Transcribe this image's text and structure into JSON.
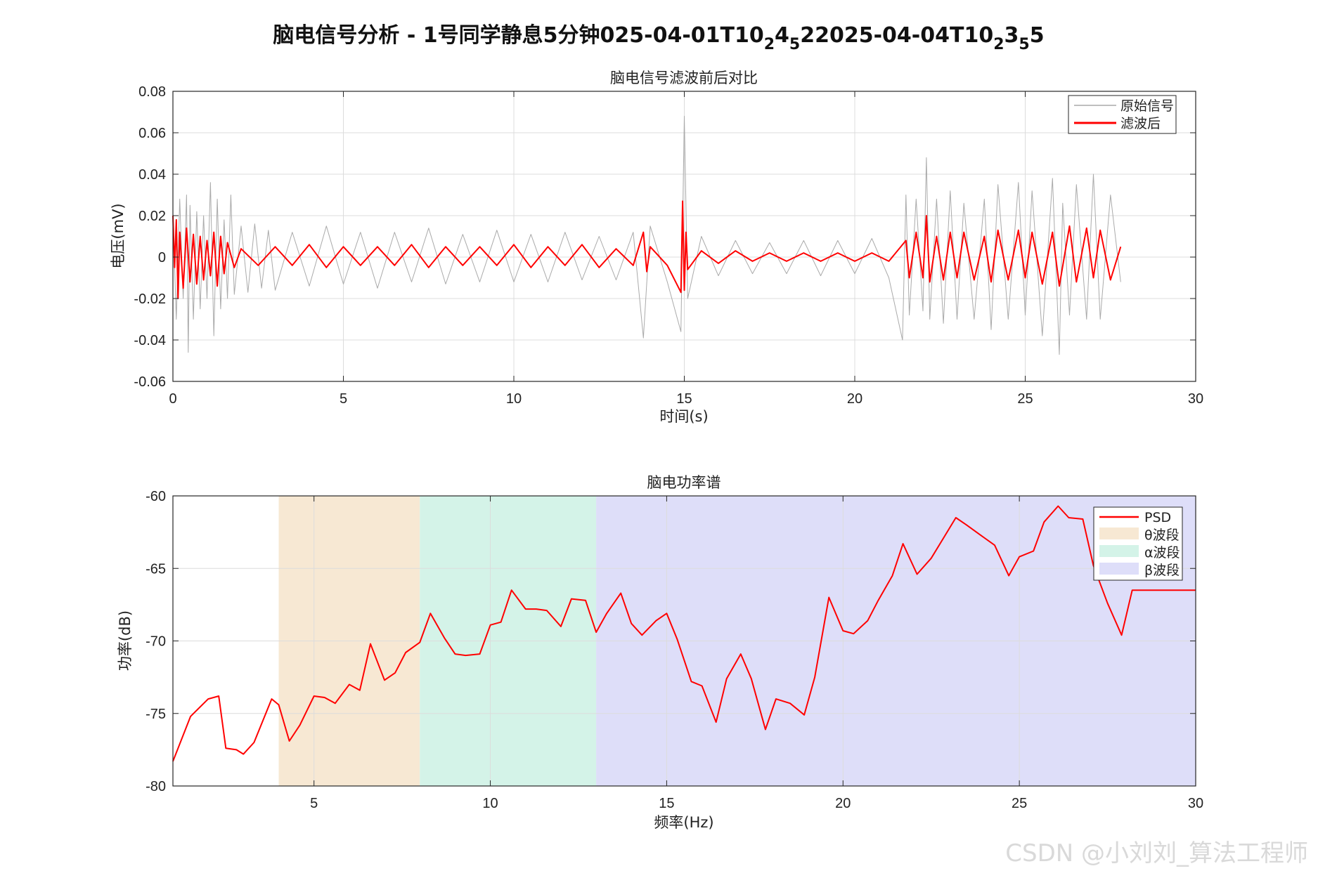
{
  "figure": {
    "suptitle": "脑电信号分析 - 1号同学静息5分钟025-04-01T10",
    "suptitle_parts": [
      {
        "t": "脑电信号分析 - 1号同学静息5分钟025-04-01T10",
        "sub": false
      },
      {
        "t": "2",
        "sub": true
      },
      {
        "t": "4",
        "sub": false
      },
      {
        "t": "5",
        "sub": true
      },
      {
        "t": "22025-04-04T10",
        "sub": false
      },
      {
        "t": "2",
        "sub": true
      },
      {
        "t": "3",
        "sub": false
      },
      {
        "t": "5",
        "sub": true
      },
      {
        "t": "5",
        "sub": false
      }
    ]
  },
  "watermark": "CSDN @小刘刘_算法工程师",
  "chart_data": [
    {
      "type": "line",
      "title": "脑电信号滤波前后对比",
      "xlabel": "时间(s)",
      "ylabel": "电压(mV)",
      "xlim": [
        0,
        30
      ],
      "ylim": [
        -0.06,
        0.08
      ],
      "xticks": [
        0,
        5,
        10,
        15,
        20,
        25,
        30
      ],
      "xtick_labels": [
        "0",
        "5",
        "10",
        "15",
        "20",
        "25",
        "30"
      ],
      "yticks": [
        -0.06,
        -0.04,
        -0.02,
        0,
        0.02,
        0.04,
        0.06,
        0.08
      ],
      "ytick_labels": [
        "-0.06",
        "-0.04",
        "-0.02",
        "0",
        "0.02",
        "0.04",
        "0.06",
        "0.08"
      ],
      "grid": true,
      "legend_position": "top-right",
      "series": [
        {
          "name": "原始信号",
          "color": "#aaaaaa",
          "x": [
            0,
            0.1,
            0.2,
            0.3,
            0.4,
            0.45,
            0.5,
            0.6,
            0.7,
            0.8,
            0.9,
            1.0,
            1.1,
            1.2,
            1.3,
            1.4,
            1.5,
            1.6,
            1.7,
            1.8,
            2.0,
            2.2,
            2.4,
            2.6,
            2.8,
            3.0,
            3.5,
            4.0,
            4.5,
            5.0,
            5.5,
            6.0,
            6.5,
            7.0,
            7.5,
            8.0,
            8.5,
            9.0,
            9.5,
            10.0,
            10.5,
            11.0,
            11.5,
            12.0,
            12.5,
            13.0,
            13.5,
            13.8,
            14.0,
            14.5,
            14.9,
            15.0,
            15.1,
            15.5,
            16.0,
            16.5,
            17.0,
            17.5,
            18.0,
            18.5,
            19.0,
            19.5,
            20.0,
            20.5,
            21.0,
            21.4,
            21.5,
            21.6,
            21.8,
            22.0,
            22.1,
            22.2,
            22.4,
            22.6,
            22.8,
            23.0,
            23.2,
            23.5,
            23.8,
            24.0,
            24.2,
            24.5,
            24.8,
            25.0,
            25.2,
            25.5,
            25.8,
            26.0,
            26.1,
            26.3,
            26.5,
            26.8,
            27.0,
            27.2,
            27.5,
            27.8
          ],
          "y": [
            0.02,
            -0.03,
            0.028,
            -0.02,
            0.03,
            -0.046,
            0.025,
            -0.03,
            0.022,
            -0.025,
            0.02,
            -0.02,
            0.036,
            -0.038,
            0.028,
            -0.025,
            0.018,
            -0.02,
            0.03,
            -0.018,
            0.015,
            -0.017,
            0.016,
            -0.015,
            0.013,
            -0.016,
            0.012,
            -0.014,
            0.015,
            -0.013,
            0.012,
            -0.015,
            0.012,
            -0.012,
            0.014,
            -0.013,
            0.011,
            -0.012,
            0.013,
            -0.012,
            0.011,
            -0.012,
            0.012,
            -0.011,
            0.01,
            -0.011,
            0.012,
            -0.039,
            0.015,
            -0.012,
            -0.036,
            0.068,
            -0.02,
            0.01,
            -0.009,
            0.008,
            -0.008,
            0.007,
            -0.008,
            0.008,
            -0.009,
            0.008,
            -0.008,
            0.009,
            -0.01,
            -0.04,
            0.03,
            -0.028,
            0.028,
            -0.026,
            0.048,
            -0.03,
            0.028,
            -0.032,
            0.032,
            -0.03,
            0.026,
            -0.03,
            0.028,
            -0.035,
            0.035,
            -0.03,
            0.036,
            -0.028,
            0.032,
            -0.038,
            0.038,
            -0.047,
            0.026,
            -0.028,
            0.035,
            -0.03,
            0.04,
            -0.03,
            0.03,
            -0.012
          ]
        },
        {
          "name": "滤波后",
          "color": "#ff0000",
          "x": [
            0,
            0.05,
            0.1,
            0.15,
            0.2,
            0.3,
            0.4,
            0.5,
            0.6,
            0.7,
            0.8,
            0.9,
            1.0,
            1.1,
            1.2,
            1.3,
            1.4,
            1.5,
            1.6,
            1.8,
            2.0,
            2.5,
            3.0,
            3.5,
            4.0,
            4.5,
            5.0,
            5.5,
            6.0,
            6.5,
            7.0,
            7.5,
            8.0,
            8.5,
            9.0,
            9.5,
            10.0,
            10.5,
            11.0,
            11.5,
            12.0,
            12.5,
            13.0,
            13.5,
            13.8,
            13.9,
            14.0,
            14.5,
            14.9,
            14.95,
            15.0,
            15.05,
            15.1,
            15.5,
            16.0,
            16.5,
            17.0,
            17.5,
            18.0,
            18.5,
            19.0,
            19.5,
            20.0,
            20.5,
            21.0,
            21.5,
            21.6,
            21.8,
            22.0,
            22.1,
            22.2,
            22.4,
            22.6,
            22.8,
            23.0,
            23.2,
            23.5,
            23.8,
            24.0,
            24.2,
            24.5,
            24.8,
            25.0,
            25.2,
            25.5,
            25.8,
            26.0,
            26.3,
            26.5,
            26.8,
            27.0,
            27.2,
            27.5,
            27.8
          ],
          "y": [
            0.02,
            -0.005,
            0.018,
            -0.02,
            0.012,
            -0.015,
            0.014,
            -0.012,
            0.011,
            -0.013,
            0.01,
            -0.011,
            0.008,
            -0.009,
            0.012,
            -0.014,
            0.01,
            -0.008,
            0.007,
            -0.005,
            0.004,
            -0.004,
            0.005,
            -0.004,
            0.006,
            -0.005,
            0.005,
            -0.004,
            0.005,
            -0.004,
            0.006,
            -0.005,
            0.005,
            -0.004,
            0.005,
            -0.004,
            0.006,
            -0.005,
            0.005,
            -0.004,
            0.006,
            -0.005,
            0.004,
            -0.004,
            0.012,
            -0.007,
            0.005,
            -0.004,
            -0.017,
            0.027,
            -0.016,
            0.012,
            -0.006,
            0.003,
            -0.003,
            0.003,
            -0.002,
            0.002,
            -0.002,
            0.002,
            -0.002,
            0.002,
            -0.002,
            0.002,
            -0.002,
            0.008,
            -0.01,
            0.012,
            -0.01,
            0.02,
            -0.012,
            0.01,
            -0.011,
            0.012,
            -0.01,
            0.012,
            -0.011,
            0.01,
            -0.012,
            0.013,
            -0.011,
            0.013,
            -0.01,
            0.012,
            -0.013,
            0.012,
            -0.014,
            0.015,
            -0.012,
            0.014,
            -0.01,
            0.013,
            -0.011,
            0.005
          ]
        }
      ]
    },
    {
      "type": "line",
      "title": "脑电功率谱",
      "xlabel": "频率(Hz)",
      "ylabel": "功率(dB)",
      "xlim": [
        1,
        30
      ],
      "ylim": [
        -80,
        -60
      ],
      "xticks": [
        5,
        10,
        15,
        20,
        25,
        30
      ],
      "xtick_labels": [
        "5",
        "10",
        "15",
        "20",
        "25",
        "30"
      ],
      "yticks": [
        -80,
        -75,
        -70,
        -65,
        -60
      ],
      "ytick_labels": [
        "-80",
        "-75",
        "-70",
        "-65",
        "-60"
      ],
      "grid": true,
      "legend_position": "top-right",
      "bands": [
        {
          "name": "θ波段",
          "from": 4,
          "to": 8,
          "color": "#f7e8d3"
        },
        {
          "name": "α波段",
          "from": 8,
          "to": 13,
          "color": "#d4f3e8"
        },
        {
          "name": "β波段",
          "from": 13,
          "to": 30,
          "color": "#dedef9"
        }
      ],
      "series": [
        {
          "name": "PSD",
          "color": "#ff0000",
          "x": [
            1.0,
            1.5,
            2.0,
            2.3,
            2.5,
            2.8,
            3.0,
            3.3,
            3.8,
            4.0,
            4.3,
            4.6,
            5.0,
            5.3,
            5.6,
            6.0,
            6.3,
            6.6,
            7.0,
            7.3,
            7.6,
            8.0,
            8.3,
            8.7,
            9.0,
            9.3,
            9.7,
            10.0,
            10.3,
            10.6,
            11.0,
            11.3,
            11.6,
            12.0,
            12.3,
            12.7,
            13.0,
            13.3,
            13.7,
            14.0,
            14.3,
            14.7,
            15.0,
            15.3,
            15.7,
            16.0,
            16.4,
            16.7,
            17.1,
            17.4,
            17.8,
            18.1,
            18.5,
            18.9,
            19.2,
            19.6,
            20.0,
            20.3,
            20.7,
            21.0,
            21.4,
            21.7,
            22.1,
            22.5,
            22.8,
            23.2,
            23.5,
            23.9,
            24.3,
            24.7,
            25.0,
            25.4,
            25.7,
            26.1,
            26.4,
            26.8,
            27.1,
            27.5,
            27.9,
            28.2,
            28.6,
            29.0,
            29.3,
            29.7,
            30.0
          ],
          "y": [
            -78.3,
            -75.2,
            -74.0,
            -73.8,
            -77.4,
            -77.5,
            -77.8,
            -77.0,
            -74.0,
            -74.4,
            -76.9,
            -75.8,
            -73.8,
            -73.9,
            -74.3,
            -73.0,
            -73.4,
            -70.2,
            -72.7,
            -72.2,
            -70.8,
            -70.1,
            -68.1,
            -69.8,
            -70.9,
            -71.0,
            -70.9,
            -68.9,
            -68.7,
            -66.5,
            -67.8,
            -67.8,
            -67.9,
            -69.0,
            -67.1,
            -67.2,
            -69.4,
            -68.1,
            -66.7,
            -68.8,
            -69.6,
            -68.6,
            -68.1,
            -69.9,
            -72.8,
            -73.1,
            -75.6,
            -72.6,
            -70.9,
            -72.6,
            -76.1,
            -74.0,
            -74.3,
            -75.1,
            -72.5,
            -67.0,
            -69.3,
            -69.5,
            -68.6,
            -67.2,
            -65.5,
            -63.3,
            -65.4,
            -64.3,
            -63.1,
            -61.5,
            -62.0,
            -62.7,
            -63.4,
            -65.5,
            -64.2,
            -63.8,
            -61.8,
            -60.7,
            -61.5,
            -61.6,
            -64.8,
            -67.4,
            -69.6,
            -66.5,
            -66.5,
            -66.5,
            -66.5,
            -66.5,
            -66.5
          ]
        }
      ]
    }
  ]
}
